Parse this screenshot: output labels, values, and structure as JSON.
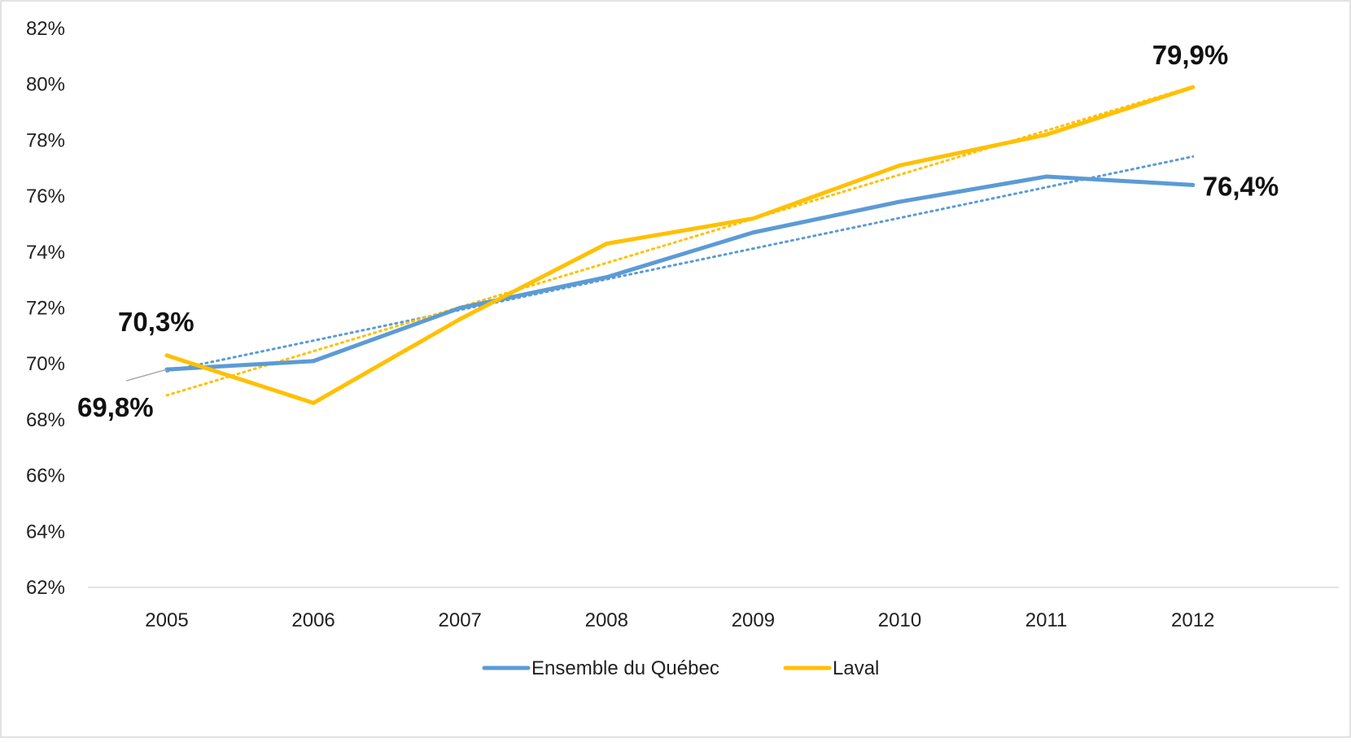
{
  "chart_data": {
    "type": "line",
    "title": "",
    "xlabel": "",
    "ylabel": "",
    "categories": [
      "2005",
      "2006",
      "2007",
      "2008",
      "2009",
      "2010",
      "2011",
      "2012"
    ],
    "ylim": [
      0.62,
      0.82
    ],
    "y_ticks": [
      0.62,
      0.64,
      0.66,
      0.68,
      0.7,
      0.72,
      0.74,
      0.76,
      0.78,
      0.8,
      0.82
    ],
    "y_tick_labels": [
      "62%",
      "64%",
      "66%",
      "68%",
      "70%",
      "72%",
      "74%",
      "76%",
      "78%",
      "80%",
      "82%"
    ],
    "grid": false,
    "legend_position": "bottom",
    "series": [
      {
        "name": "Ensemble du Québec",
        "color": "#5B9BD5",
        "values": [
          0.698,
          0.701,
          0.72,
          0.731,
          0.747,
          0.758,
          0.767,
          0.764
        ],
        "trendline": "linear"
      },
      {
        "name": "Laval",
        "color": "#FFC000",
        "values": [
          0.703,
          0.686,
          0.716,
          0.743,
          0.752,
          0.771,
          0.782,
          0.799
        ],
        "trendline": "linear"
      }
    ],
    "data_labels": [
      {
        "series": 0,
        "point": 0,
        "text": "69,8%"
      },
      {
        "series": 1,
        "point": 0,
        "text": "70,3%"
      },
      {
        "series": 1,
        "point": 7,
        "text": "79,9%"
      },
      {
        "series": 0,
        "point": 7,
        "text": "76,4%"
      }
    ]
  }
}
